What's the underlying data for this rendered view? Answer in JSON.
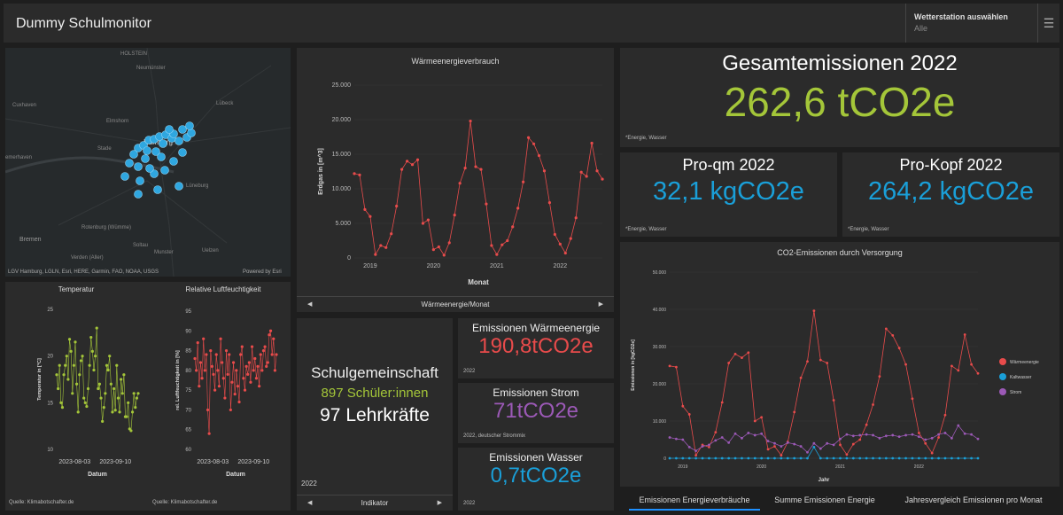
{
  "header": {
    "title": "Dummy Schulmonitor",
    "station_label": "Wetterstation auswählen",
    "station_value": "Alle",
    "menu_icon": "hamburger-menu-icon"
  },
  "map": {
    "attribution": "LGV Hamburg, LGLN, Esri, HERE, Garmin, FAO, NOAA, USGS",
    "powered": "Powered by Esri",
    "places": [
      "HOLSTEIN",
      "Neumünster",
      "Cuxhaven",
      "Elmshorn",
      "Lübeck",
      "Stade",
      "Hamburg",
      "emerhaven",
      "Lüneburg",
      "Rotenburg (Wümme)",
      "Bremen",
      "Soltau",
      "Munster",
      "Uelzen",
      "Verden (Aller)"
    ]
  },
  "total": {
    "title": "Gesamtemissionen 2022",
    "value": "262,6 tCO2e",
    "note": "*Energie, Wasser"
  },
  "perqm": {
    "title": "Pro-qm 2022",
    "value": "32,1 kgCO2e",
    "note": "*Energie, Wasser"
  },
  "perkopf": {
    "title": "Pro-Kopf 2022",
    "value": "264,2 kgCO2e",
    "note": "*Energie, Wasser"
  },
  "heat": {
    "value": "190,8tCO2e",
    "title": "Emissionen Wärmeenergie",
    "note": "2022"
  },
  "strom": {
    "value": "71tCO2e",
    "title": "Emissionen Strom",
    "note": "2022, deutscher Strommix"
  },
  "wasser": {
    "value": "0,7tCO2e",
    "title": "Emissionen Wasser",
    "note": "2022"
  },
  "school": {
    "title": "Schulgemeinschaft",
    "students": "897 Schüler:innen",
    "teachers": "97 Lehrkräfte",
    "year": "2022",
    "nav": "Indikator"
  },
  "colors": {
    "green": "#a4c639",
    "blue": "#1a9fd8",
    "red": "#e84b4b",
    "purple": "#9b59b6"
  },
  "tabs": [
    "Emissionen Energieverbräuche",
    "Summe Emissionen Energie",
    "Jahresvergleich Emissionen pro Monat"
  ],
  "chart_data": [
    {
      "type": "line",
      "title": "Wärmeenergieverbrauch",
      "xlabel": "Monat",
      "ylabel": "Erdgas in [m^3]",
      "ylim": [
        0,
        25000
      ],
      "yticks": [
        "0",
        "5.000",
        "10.000",
        "15.000",
        "20.000",
        "25.000"
      ],
      "xticks": [
        "2019",
        "2020",
        "2021",
        "2022"
      ],
      "nav": "Wärmeenergie/Monat",
      "series": [
        {
          "values": [
            12200,
            12000,
            7000,
            6000,
            500,
            1800,
            1500,
            3500,
            7500,
            12800,
            14000,
            13500,
            14200,
            5000,
            5500,
            1200,
            1600,
            400,
            2200,
            6200,
            10800,
            13000,
            19800,
            13200,
            12800,
            7800,
            1800,
            500,
            1900,
            2500,
            4500,
            7200,
            11000,
            17400,
            16500,
            14800,
            12600,
            8000,
            3400,
            2000,
            700,
            2800,
            5800,
            12400,
            11800,
            16600,
            12600,
            11400
          ]
        }
      ]
    },
    {
      "type": "scatter",
      "title": "Temperatur",
      "xlabel": "Datum",
      "ylabel": "Temperatur in [°C]",
      "ylim": [
        10,
        25
      ],
      "yticks": [
        "10",
        "15",
        "20",
        "25"
      ],
      "xticks": [
        "2023-08-03",
        "2023-09-10"
      ],
      "source": "Quelle: Klimabotschafter.de",
      "series": [
        {
          "values": [
            18,
            16.5,
            19,
            15,
            14.5,
            18,
            19,
            20,
            17.5,
            21.8,
            20.5,
            16,
            19,
            21.5,
            17,
            14,
            18,
            19.5,
            20,
            15.5,
            15,
            14.6,
            16.5,
            19,
            22,
            20.5,
            18.5,
            20,
            23,
            16.5,
            17,
            15.5,
            13,
            14.5,
            16,
            19,
            18.5,
            20,
            17,
            14,
            16.5,
            14.2,
            19,
            15.5,
            14,
            17.5,
            16,
            18,
            13.5,
            13.5,
            15,
            12.2,
            12,
            14,
            16,
            14.5,
            15.5,
            16
          ]
        }
      ]
    },
    {
      "type": "scatter",
      "title": "Relative Luftfeuchtigkeit",
      "xlabel": "Datum",
      "ylabel": "rel. Luftfeuchtigkeit in [%]",
      "ylim": [
        60,
        95
      ],
      "yticks": [
        "60",
        "65",
        "70",
        "75",
        "80",
        "85",
        "90",
        "95"
      ],
      "xticks": [
        "2023-08-03",
        "2023-09-10"
      ],
      "source": "Quelle: Klimabotschafter.de",
      "series": [
        {
          "values": [
            83,
            80,
            87,
            76,
            82,
            78,
            88,
            80,
            84,
            70,
            64,
            85,
            81,
            79,
            75,
            84,
            80,
            76,
            88,
            82,
            78,
            73,
            85,
            79,
            84,
            70,
            77,
            82,
            74,
            80,
            76,
            72,
            84,
            86,
            78,
            75,
            81,
            79,
            82,
            77,
            86,
            80,
            83,
            78,
            81,
            76,
            84,
            80,
            85,
            86,
            81,
            82,
            89,
            90,
            84,
            88,
            80,
            84
          ]
        }
      ]
    },
    {
      "type": "line",
      "title": "CO2-Emissionen durch Versorgung",
      "xlabel": "Jahr",
      "ylabel": "Emissionen in [kgCO2e]",
      "ylim": [
        0,
        50000
      ],
      "yticks": [
        "0",
        "10.000",
        "20.000",
        "30.000",
        "40.000",
        "50.000"
      ],
      "xticks": [
        "2019",
        "2020",
        "2021",
        "2022"
      ],
      "legend": "right",
      "series": [
        {
          "name": "Wärmeenergie",
          "color": "#e84b4b",
          "values": [
            24800,
            24500,
            14000,
            11800,
            800,
            3600,
            3000,
            7000,
            15000,
            25600,
            28000,
            27000,
            28400,
            10000,
            11000,
            2400,
            3200,
            800,
            4400,
            12400,
            21600,
            26000,
            39600,
            26400,
            25600,
            15600,
            3600,
            1000,
            3800,
            5000,
            9000,
            14400,
            22000,
            34800,
            33000,
            29600,
            25200,
            16000,
            6800,
            4000,
            1400,
            5600,
            11600,
            24800,
            23600,
            33200,
            25200,
            22800
          ]
        },
        {
          "name": "Kaltwasser",
          "color": "#1a9fd8",
          "values": [
            0,
            0,
            0,
            0,
            0,
            0,
            0,
            0,
            0,
            0,
            0,
            0,
            0,
            0,
            0,
            0,
            0,
            0,
            0,
            0,
            0,
            0,
            3000,
            0,
            0,
            0,
            0,
            0,
            0,
            0,
            0,
            0,
            0,
            0,
            0,
            0,
            0,
            0,
            0,
            0,
            0,
            0,
            0,
            0,
            0,
            0,
            0,
            0
          ]
        },
        {
          "name": "Strom",
          "color": "#9b59b6",
          "values": [
            5600,
            5200,
            5000,
            3000,
            2000,
            3200,
            3600,
            4800,
            5600,
            4200,
            6600,
            5400,
            6800,
            6200,
            6600,
            4600,
            4000,
            3200,
            4200,
            3800,
            3200,
            1600,
            4000,
            2600,
            4000,
            3600,
            5200,
            6400,
            6000,
            6200,
            6400,
            6200,
            5400,
            6000,
            6200,
            5800,
            6200,
            6400,
            5800,
            5000,
            5400,
            6400,
            6800,
            5400,
            8800,
            6600,
            6400,
            5200
          ]
        }
      ]
    }
  ]
}
